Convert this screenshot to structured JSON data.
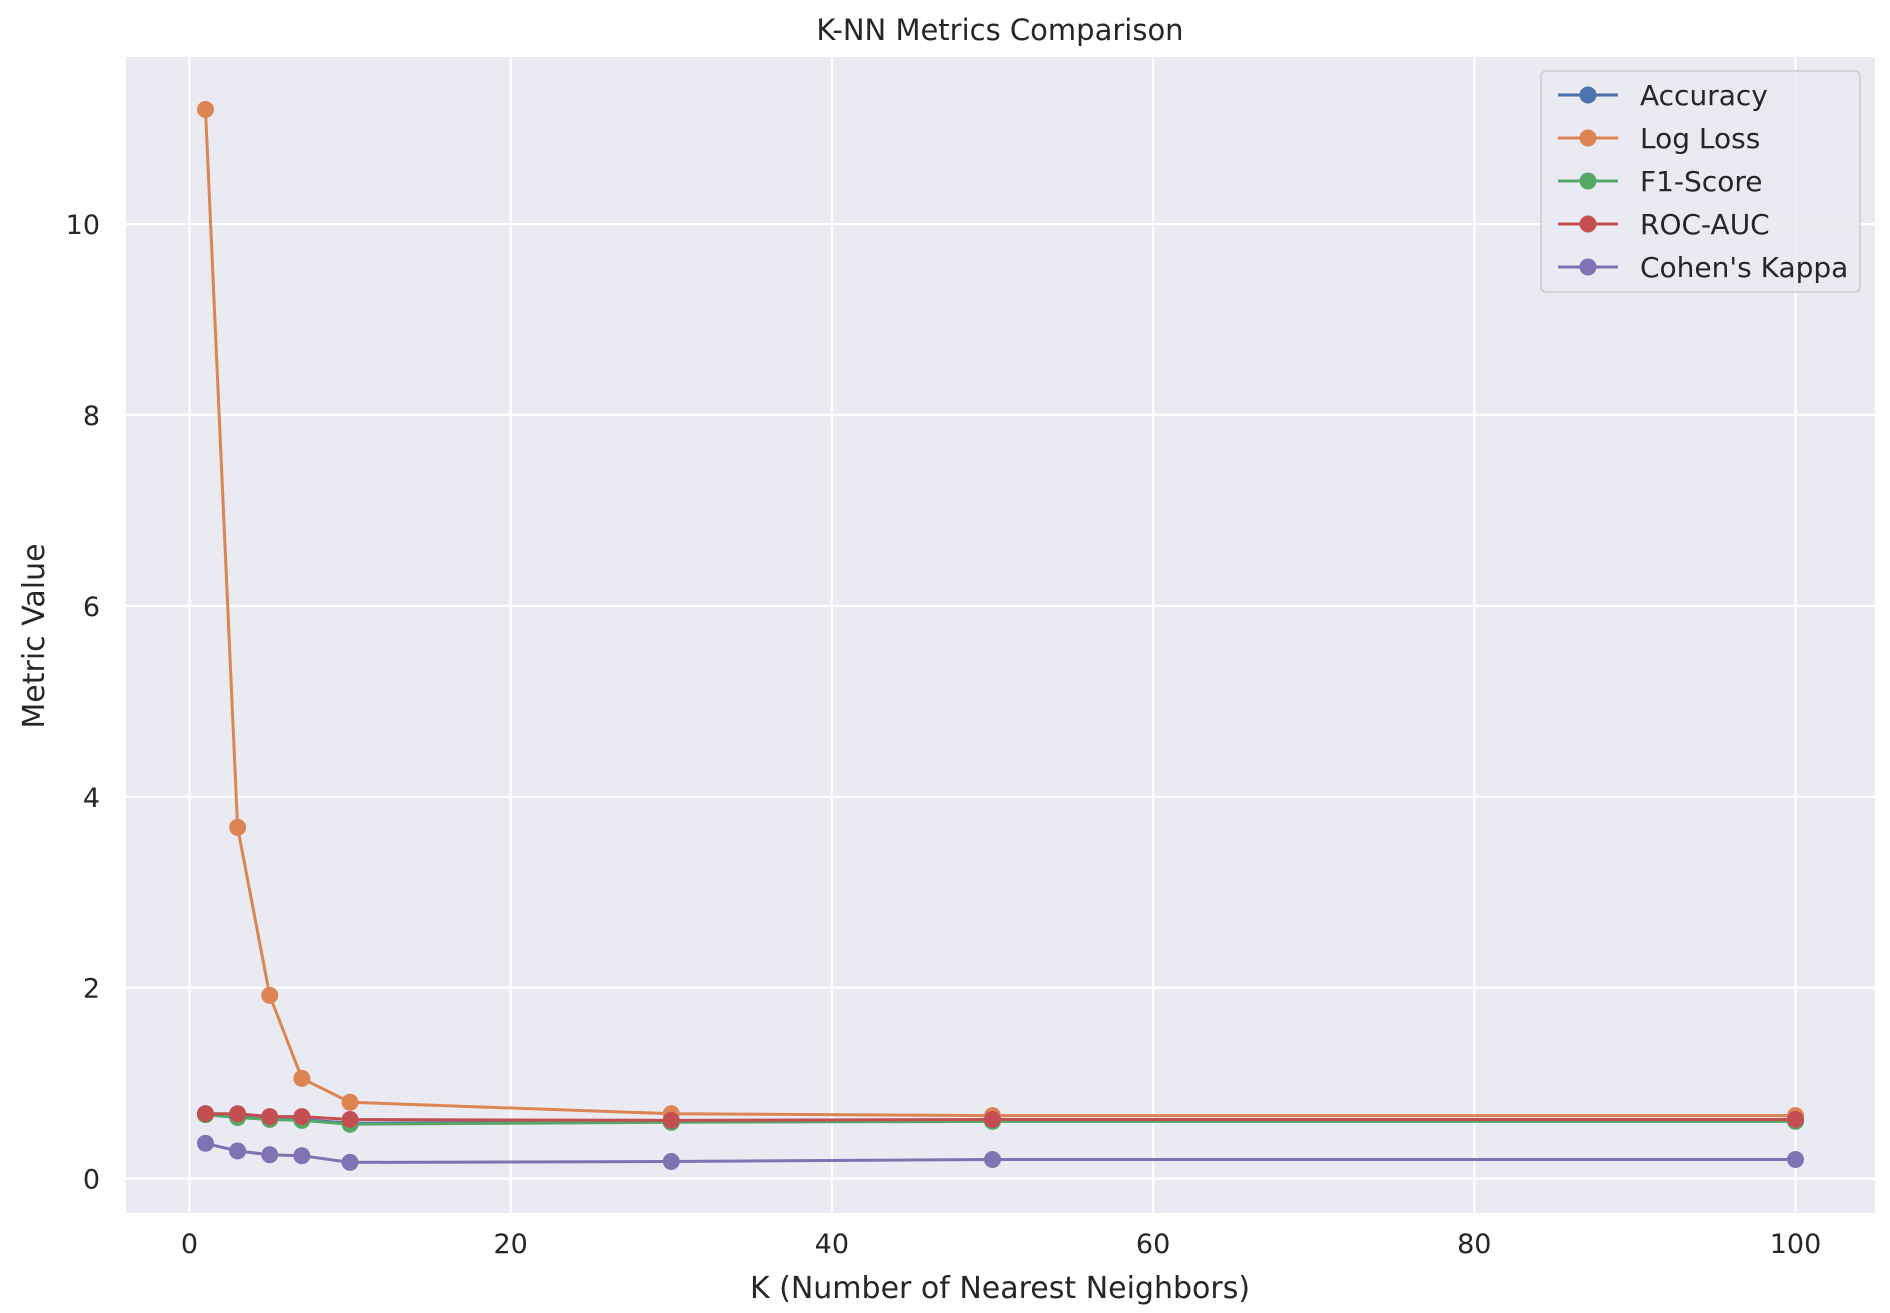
{
  "chart_data": {
    "type": "line",
    "title": "K-NN Metrics Comparison",
    "xlabel": "K (Number of Nearest Neighbors)",
    "ylabel": "Metric Value",
    "x": [
      1,
      3,
      5,
      7,
      10,
      30,
      50,
      100
    ],
    "xlim": [
      -3.95,
      104.95
    ],
    "ylim": [
      -0.36,
      11.75
    ],
    "xticks": [
      0,
      20,
      40,
      60,
      80,
      100
    ],
    "xtick_labels": [
      "0",
      "20",
      "40",
      "60",
      "80",
      "100"
    ],
    "yticks": [
      0,
      2,
      4,
      6,
      8,
      10
    ],
    "ytick_labels": [
      "0",
      "2",
      "4",
      "6",
      "8",
      "10"
    ],
    "grid": true,
    "legend_position": "top-right",
    "background_color": "#eaeaf2",
    "series": [
      {
        "name": "Accuracy",
        "color": "#4c72b0",
        "values": [
          0.68,
          0.65,
          0.63,
          0.62,
          0.58,
          0.6,
          0.61,
          0.61
        ]
      },
      {
        "name": "Log Loss",
        "color": "#dd8452",
        "values": [
          11.2,
          3.68,
          1.92,
          1.05,
          0.8,
          0.68,
          0.66,
          0.66
        ]
      },
      {
        "name": "F1-Score",
        "color": "#55a868",
        "values": [
          0.67,
          0.64,
          0.62,
          0.61,
          0.57,
          0.59,
          0.6,
          0.6
        ]
      },
      {
        "name": "ROC-AUC",
        "color": "#c44e52",
        "values": [
          0.68,
          0.68,
          0.65,
          0.65,
          0.62,
          0.61,
          0.62,
          0.62
        ]
      },
      {
        "name": "Cohen's Kappa",
        "color": "#8172b3",
        "values": [
          0.37,
          0.29,
          0.25,
          0.24,
          0.17,
          0.18,
          0.2,
          0.2
        ]
      }
    ]
  }
}
